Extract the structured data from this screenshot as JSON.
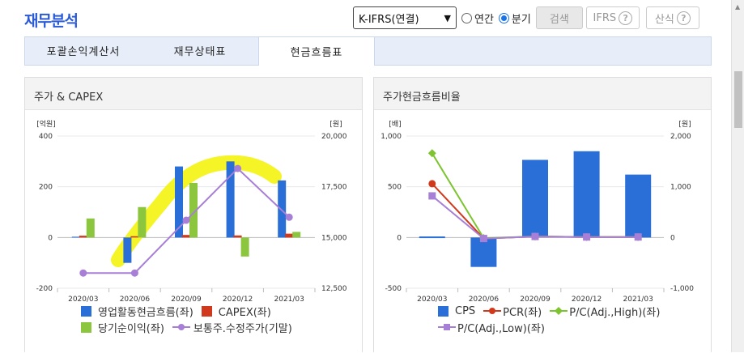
{
  "header": {
    "title": "재무분석",
    "select_value": "K-IFRS(연결)",
    "radio_annual": "연간",
    "radio_quarter": "분기",
    "search_label": "검색",
    "ifrs_label": "IFRS",
    "calc_label": "산식",
    "help_glyph": "?"
  },
  "tabs": [
    {
      "label": "포괄손익계산서"
    },
    {
      "label": "재무상태표"
    },
    {
      "label": "현금흐름표"
    }
  ],
  "panels": {
    "left_title": "주가 & CAPEX",
    "right_title": "주가현금흐름비율"
  },
  "colors": {
    "blue": "#2a6ed8",
    "red": "#d0391c",
    "green": "#8cc63f",
    "purple": "#a77fd6",
    "greenline": "#7dc430",
    "highlight": "#f2f200"
  },
  "chart_data": [
    {
      "type": "bar",
      "title": "주가 & CAPEX",
      "categories": [
        "2020/03",
        "2020/06",
        "2020/09",
        "2020/12",
        "2021/03"
      ],
      "y_left_unit": "[억원]",
      "y_right_unit": "[원]",
      "y_left_ticks": [
        "400",
        "200",
        "0",
        "-200"
      ],
      "y_right_ticks": [
        "20,000",
        "17,500",
        "15,000",
        "12,500"
      ],
      "ylim_left": [
        -200,
        400
      ],
      "ylim_right": [
        12500,
        20000
      ],
      "series": [
        {
          "name": "영업활동현금흐름(좌)",
          "type": "bar",
          "values": [
            3,
            -100,
            280,
            300,
            225
          ]
        },
        {
          "name": "CAPEX(좌)",
          "type": "bar",
          "values": [
            7,
            5,
            10,
            8,
            15
          ]
        },
        {
          "name": "당기순이익(좌)",
          "type": "bar",
          "values": [
            75,
            120,
            215,
            -75,
            22
          ]
        },
        {
          "name": "보통주.수정주가(기말)",
          "type": "line",
          "axis": "right",
          "values": [
            13250,
            13250,
            15850,
            18400,
            16000
          ]
        }
      ]
    },
    {
      "type": "bar",
      "title": "주가현금흐름비율",
      "categories": [
        "2020/03",
        "2020/06",
        "2020/09",
        "2020/12",
        "2021/03"
      ],
      "y_left_unit": "[배]",
      "y_right_unit": "[원]",
      "y_left_ticks": [
        "1,000",
        "500",
        "0",
        "-500"
      ],
      "y_right_ticks": [
        "2,000",
        "1,000",
        "0",
        "-1,000"
      ],
      "ylim_left": [
        -500,
        1000
      ],
      "ylim_right": [
        -1000,
        2000
      ],
      "series": [
        {
          "name": "CPS",
          "type": "bar",
          "axis": "right",
          "values": [
            20,
            -580,
            1530,
            1700,
            1240
          ]
        },
        {
          "name": "PCR(좌)",
          "type": "line",
          "values": [
            530,
            -10,
            10,
            5,
            5
          ]
        },
        {
          "name": "P/C(Adj.,High)(좌)",
          "type": "line",
          "values": [
            830,
            -5,
            10,
            5,
            5
          ]
        },
        {
          "name": "P/C(Adj.,Low)(좌)",
          "type": "line",
          "values": [
            410,
            -10,
            10,
            5,
            5
          ]
        }
      ]
    }
  ]
}
